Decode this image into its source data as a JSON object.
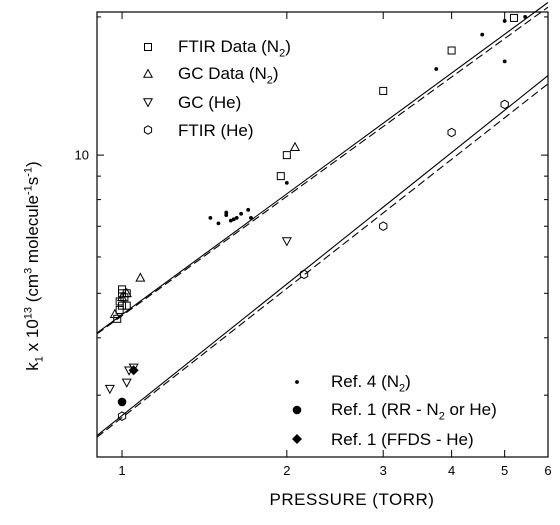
{
  "chart_data": {
    "type": "scatter",
    "xscale": "log",
    "yscale": "log",
    "xlim": [
      0.9,
      6
    ],
    "ylim": [
      2.2,
      20.5
    ],
    "xlabel": "PRESSURE (TORR)",
    "ylabel": {
      "pre": "k",
      "sub1": "1",
      "mid": " x 10",
      "sup1": "13",
      "rest": " (cm",
      "sup2": "3",
      "rest2": " molecule",
      "sup3": "-1",
      "rest3": "s",
      "sup4": "-1",
      "end": ")"
    },
    "xticks": [
      {
        "value": 1,
        "label": "1"
      },
      {
        "value": 2,
        "label": "2"
      },
      {
        "value": 3,
        "label": "3"
      },
      {
        "value": 4,
        "label": "4"
      },
      {
        "value": 5,
        "label": "5"
      },
      {
        "value": 6,
        "label": "6"
      }
    ],
    "yticks": [
      {
        "value": 10,
        "label": "10"
      }
    ],
    "series": [
      {
        "name": "FTIR Data (N2)",
        "legend": {
          "main": "FTIR Data (N",
          "sub": "2",
          "end": ")"
        },
        "marker": "square-open",
        "x": [
          0.98,
          0.99,
          1.0,
          1.0,
          1.01,
          1.0,
          0.99,
          1.02,
          1.02,
          1.95,
          2.0,
          3.0,
          4.0,
          5.2
        ],
        "y": [
          4.4,
          4.8,
          5.0,
          5.1,
          4.9,
          4.7,
          4.6,
          4.7,
          5.0,
          9.0,
          10.0,
          13.8,
          16.9,
          19.9
        ]
      },
      {
        "name": "GC Data (N2)",
        "legend": {
          "main": "GC Data (N",
          "sub": "2",
          "end": ")"
        },
        "marker": "triangle-up-open",
        "x": [
          0.97,
          1.0,
          1.02,
          1.08,
          2.07
        ],
        "y": [
          4.5,
          4.9,
          5.0,
          5.4,
          10.4
        ]
      },
      {
        "name": "GC (He)",
        "legend": {
          "main": "GC (He)",
          "sub": "",
          "end": ""
        },
        "marker": "triangle-down-open",
        "x": [
          0.95,
          1.02,
          1.03,
          1.05,
          2.0
        ],
        "y": [
          3.1,
          3.2,
          3.4,
          3.45,
          6.5
        ]
      },
      {
        "name": "FTIR (He)",
        "legend": {
          "main": "FTIR (He)",
          "sub": "",
          "end": ""
        },
        "marker": "hexagon-open",
        "x": [
          1.0,
          2.15,
          3.0,
          4.0,
          5.0
        ],
        "y": [
          2.7,
          5.5,
          7.0,
          11.2,
          12.9
        ]
      },
      {
        "name": "Ref. 4 (N2)",
        "legend": {
          "main": "Ref. 4 (N",
          "sub": "2",
          "end": ")"
        },
        "marker": "dot-small",
        "x": [
          1.45,
          1.5,
          1.55,
          1.58,
          1.6,
          1.62,
          1.65,
          1.7,
          1.72,
          1.55,
          2.0,
          3.75,
          4.55,
          5.0,
          5.0,
          5.45
        ],
        "y": [
          7.3,
          7.1,
          7.4,
          7.2,
          7.25,
          7.3,
          7.45,
          7.6,
          7.3,
          7.5,
          8.7,
          15.4,
          18.3,
          19.6,
          16.0,
          20.0
        ]
      },
      {
        "name": "Ref. 1 (RR - N2 or He)",
        "legend": {
          "main": "Ref. 1 (RR - N",
          "sub": "2",
          "end": " or He)"
        },
        "marker": "circle-filled",
        "x": [
          1.0
        ],
        "y": [
          2.9
        ]
      },
      {
        "name": "Ref. 1 (FFDS - He)",
        "legend": {
          "main": "Ref. 1 (FFDS - He)",
          "sub": "",
          "end": ""
        },
        "marker": "diamond-filled",
        "x": [
          1.05
        ],
        "y": [
          3.4
        ]
      }
    ],
    "fit_lines": [
      {
        "style": "solid",
        "x": [
          0.9,
          6
        ],
        "y": [
          4.1,
          21.5
        ]
      },
      {
        "style": "dashed",
        "x": [
          0.9,
          6
        ],
        "y": [
          4.08,
          21.0
        ]
      },
      {
        "style": "solid",
        "x": [
          0.9,
          6
        ],
        "y": [
          2.45,
          14.9
        ]
      },
      {
        "style": "dashed",
        "x": [
          0.9,
          6
        ],
        "y": [
          2.43,
          14.3
        ]
      }
    ]
  }
}
